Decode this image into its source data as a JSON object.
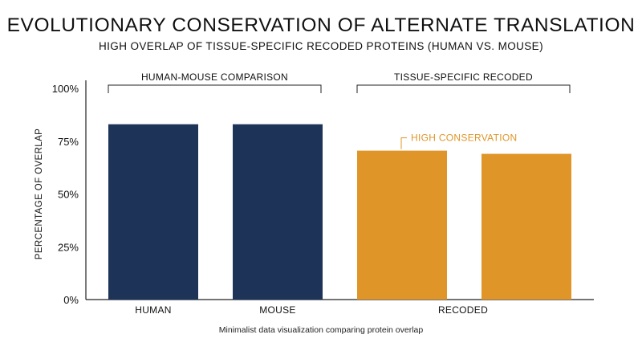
{
  "title": "EVOLUTIONARY CONSERVATION OF ALTERNATE TRANSLATION",
  "subtitle": "HIGH OVERLAP OF TISSUE-SPECIFIC RECODED PROTEINS (HUMAN VS. MOUSE)",
  "caption": "Minimalist data visualization comparing protein overlap",
  "chart_data": {
    "type": "bar",
    "ylabel": "PERCENTAGE OF OVERLAP",
    "ylim": [
      0,
      100
    ],
    "y_ticks": [
      "0%",
      "25%",
      "50%",
      "75%",
      "100%"
    ],
    "x_tick_labels": [
      "HUMAN",
      "MOUSE",
      "RECODED"
    ],
    "bars": [
      {
        "value": 83,
        "group": 0,
        "color": "#1d3358"
      },
      {
        "value": 83,
        "group": 0,
        "color": "#1d3358"
      },
      {
        "value": 70.5,
        "group": 1,
        "color": "#df9527"
      },
      {
        "value": 69,
        "group": 1,
        "color": "#df9527"
      }
    ],
    "groups": [
      {
        "label": "HUMAN-MOUSE COMPARISON"
      },
      {
        "label": "TISSUE-SPECIFIC RECODED"
      }
    ],
    "annotation": {
      "text": "HIGH CONSERVATION",
      "color": "#df9527"
    },
    "grid": false
  }
}
